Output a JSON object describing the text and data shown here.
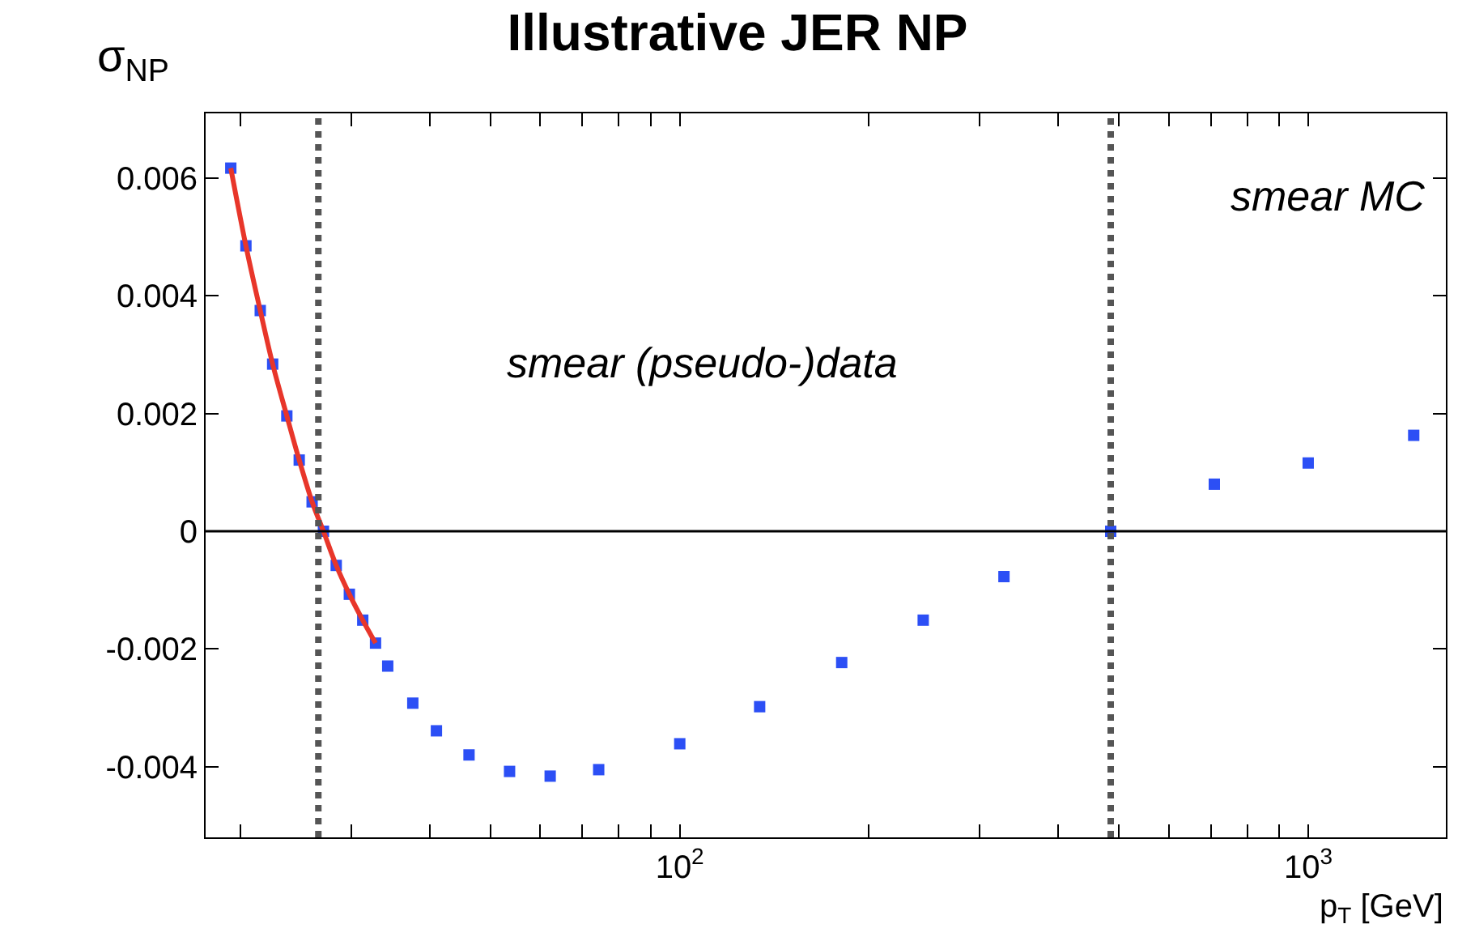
{
  "chart_data": {
    "type": "scatter",
    "title": "Illustrative JER NP",
    "xlabel": "p$_{T}$ [GeV]",
    "ylabel": "σ$_{NP}$",
    "log": "x",
    "grid": false,
    "xlim": [
      17.6,
      1656
    ],
    "xticks": [
      {
        "value": 20,
        "label": null
      },
      {
        "value": 30,
        "label": null
      },
      {
        "value": 40,
        "label": null
      },
      {
        "value": 50,
        "label": null
      },
      {
        "value": 60,
        "label": null
      },
      {
        "value": 70,
        "label": null
      },
      {
        "value": 80,
        "label": null
      },
      {
        "value": 90,
        "label": null
      },
      {
        "value": 100,
        "label": "10$^{2}$"
      },
      {
        "value": 200,
        "label": null
      },
      {
        "value": 300,
        "label": null
      },
      {
        "value": 400,
        "label": null
      },
      {
        "value": 500,
        "label": null
      },
      {
        "value": 600,
        "label": null
      },
      {
        "value": 700,
        "label": null
      },
      {
        "value": 800,
        "label": null
      },
      {
        "value": 900,
        "label": null
      },
      {
        "value": 1000,
        "label": "10$^{3}$"
      }
    ],
    "ylim": [
      -0.0052,
      0.0071
    ],
    "yticks": [
      {
        "value": -0.004,
        "label": "-0.004"
      },
      {
        "value": -0.002,
        "label": "-0.002"
      },
      {
        "value": 0,
        "label": "0"
      },
      {
        "value": 0.002,
        "label": "0.002"
      },
      {
        "value": 0.004,
        "label": "0.004"
      },
      {
        "value": 0.006,
        "label": "0.006"
      }
    ],
    "series": [
      {
        "marker": "square",
        "color": "#2c4ff5",
        "x": [
          19.3,
          20.4,
          21.5,
          22.5,
          23.7,
          24.8,
          26.0,
          27.1,
          28.4,
          29.8,
          31.3,
          32.8,
          34.3,
          37.6,
          41.0,
          46.2,
          53.6,
          62.2,
          74.3,
          100,
          134,
          181,
          244,
          328,
          485,
          709,
          1000,
          1472
        ],
        "values": [
          0.00617,
          0.00485,
          0.00375,
          0.00284,
          0.00196,
          0.00121,
          0.0005,
          0,
          -0.00058,
          -0.00107,
          -0.00151,
          -0.0019,
          -0.00229,
          -0.00292,
          -0.00339,
          -0.0038,
          -0.00408,
          -0.00416,
          -0.00405,
          -0.00361,
          -0.00298,
          -0.00223,
          -0.00151,
          -0.00077,
          0,
          0.0008,
          0.00116,
          0.00163
        ]
      },
      {
        "type": "line",
        "marker": "none",
        "color": "#e8362a",
        "x": [
          19.3,
          20.4,
          21.5,
          22.5,
          23.7,
          24.8,
          26.0,
          27.1,
          28.4,
          29.8,
          31.3,
          32.8
        ],
        "values": [
          0.00617,
          0.00485,
          0.00375,
          0.00284,
          0.00196,
          0.00121,
          0.0005,
          0,
          -0.00058,
          -0.00107,
          -0.00151,
          -0.0019
        ]
      }
    ],
    "ref_lines": [
      {
        "axis": "y",
        "value": 0,
        "color": "#000000",
        "line_style": "solid"
      },
      {
        "axis": "x",
        "value": 26.6,
        "color": "#555555",
        "line_style": "dotted"
      },
      {
        "axis": "x",
        "value": 485,
        "color": "#555555",
        "line_style": "dotted"
      }
    ],
    "annotations": [
      "smear (pseudo-)data",
      "smear MC"
    ]
  }
}
